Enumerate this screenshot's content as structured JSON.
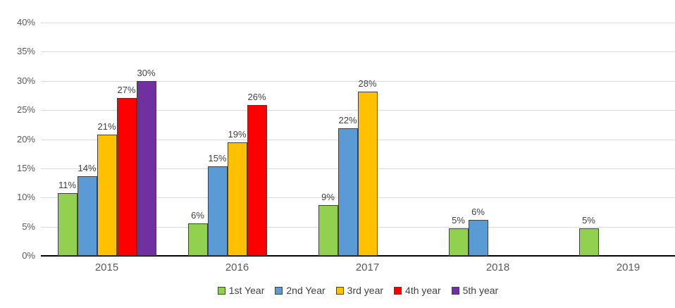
{
  "chart_data": {
    "type": "bar",
    "title": "",
    "xlabel": "",
    "ylabel": "",
    "categories": [
      "2015",
      "2016",
      "2017",
      "2018",
      "2019"
    ],
    "series": [
      {
        "name": "1st Year",
        "color": "#92D050",
        "values": [
          10.8,
          5.6,
          8.7,
          4.7,
          4.7
        ],
        "labels": [
          "11%",
          "6%",
          "9%",
          "5%",
          "5%"
        ]
      },
      {
        "name": "2nd Year",
        "color": "#5B9BD5",
        "values": [
          13.6,
          15.3,
          21.9,
          6.2,
          null
        ],
        "labels": [
          "14%",
          "15%",
          "22%",
          "6%",
          null
        ]
      },
      {
        "name": "3rd year",
        "color": "#FFC000",
        "values": [
          20.8,
          19.4,
          28.2,
          null,
          null
        ],
        "labels": [
          "21%",
          "19%",
          "28%",
          null,
          null
        ]
      },
      {
        "name": "4th year",
        "color": "#FF0000",
        "values": [
          27.1,
          25.9,
          null,
          null,
          null
        ],
        "labels": [
          "27%",
          "26%",
          null,
          null,
          null
        ]
      },
      {
        "name": "5th year",
        "color": "#7030A0",
        "values": [
          30.0,
          null,
          null,
          null,
          null
        ],
        "labels": [
          "30%",
          null,
          null,
          null,
          null
        ]
      }
    ],
    "y_axis": {
      "min": 0,
      "max": 40,
      "step": 5,
      "tick_labels": [
        "0%",
        "5%",
        "10%",
        "15%",
        "20%",
        "25%",
        "30%",
        "35%",
        "40%"
      ]
    },
    "legend": {
      "position": "bottom",
      "entries": [
        "1st Year",
        "2nd Year",
        "3rd year",
        "4th year",
        "5th year"
      ]
    },
    "grid": true,
    "colors": {
      "background": "#FFFFFF",
      "gridline": "#D9D9D9",
      "axis_line": "#000000",
      "tick_label_text": "#595959",
      "category_label_text": "#595959",
      "data_label_text": "#404040",
      "legend_text": "#404040",
      "bar_border": "#404040"
    }
  }
}
